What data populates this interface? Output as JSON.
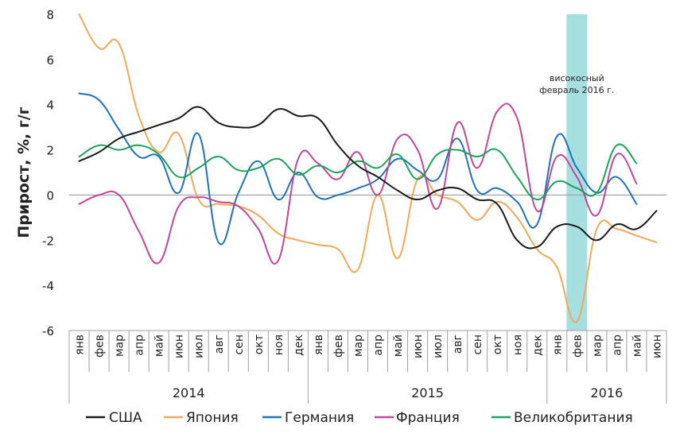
{
  "chart_data": {
    "type": "line",
    "ylabel": "Прирост, %, г/г",
    "ylim": [
      -6,
      8
    ],
    "yticks": [
      -6,
      -4,
      -2,
      0,
      2,
      4,
      6,
      8
    ],
    "grid": false,
    "legend_position": "bottom",
    "categories": [
      "янв",
      "фев",
      "мар",
      "апр",
      "май",
      "июн",
      "июл",
      "авг",
      "сен",
      "окт",
      "ноя",
      "дек",
      "янв",
      "фев",
      "мар",
      "апр",
      "май",
      "июн",
      "июл",
      "авг",
      "сен",
      "окт",
      "ноя",
      "дек",
      "янв",
      "фев",
      "мар",
      "апр",
      "май",
      "июн"
    ],
    "years": [
      {
        "label": "2014",
        "start": 0,
        "count": 12
      },
      {
        "label": "2015",
        "start": 12,
        "count": 12
      },
      {
        "label": "2016",
        "start": 24,
        "count": 6
      }
    ],
    "annotation": {
      "text_lines": [
        "високосный",
        "февраль 2016 г."
      ],
      "highlight_index": 25,
      "color": "#a6dfe0"
    },
    "series": [
      {
        "name": "США",
        "color": "#1a1a1a",
        "values": [
          1.5,
          1.9,
          2.5,
          2.8,
          3.1,
          3.4,
          3.9,
          3.2,
          3.0,
          3.1,
          3.8,
          3.5,
          3.4,
          2.2,
          1.3,
          0.8,
          0.2,
          -0.2,
          0.2,
          0.3,
          -0.2,
          -0.4,
          -2.0,
          -2.3,
          -1.4,
          -1.4,
          -2.0,
          -1.3,
          -1.5,
          -0.7
        ]
      },
      {
        "name": "Япония",
        "color": "#f0a95a",
        "values": [
          8.0,
          6.5,
          6.7,
          3.5,
          1.9,
          2.7,
          -0.2,
          -0.4,
          -0.5,
          -0.9,
          -1.7,
          -2.0,
          -2.2,
          -2.4,
          -3.3,
          0.0,
          -2.8,
          0.7,
          0.0,
          -0.3,
          -1.1,
          -0.3,
          -1.0,
          -2.4,
          -3.2,
          -5.6,
          -1.5,
          -1.5,
          -1.8,
          -2.1
        ]
      },
      {
        "name": "Германия",
        "color": "#1f73b7",
        "values": [
          4.5,
          4.2,
          2.9,
          1.7,
          1.7,
          0.1,
          2.7,
          -2.1,
          0.1,
          1.5,
          -0.2,
          1.0,
          -0.1,
          0.0,
          0.3,
          0.7,
          1.6,
          1.1,
          0.7,
          2.5,
          0.2,
          0.3,
          -0.3,
          -1.3,
          2.6,
          1.2,
          0.1,
          0.8,
          -0.4,
          null
        ]
      },
      {
        "name": "Франция",
        "color": "#c2469a",
        "values": [
          -0.4,
          0.0,
          0.0,
          -1.6,
          -3.0,
          -0.5,
          -0.1,
          -0.3,
          -0.5,
          -1.5,
          -2.9,
          1.6,
          1.4,
          0.7,
          1.9,
          0.0,
          2.5,
          2.0,
          -0.6,
          3.2,
          1.2,
          3.7,
          3.4,
          -0.7,
          1.7,
          0.8,
          -0.9,
          1.8,
          0.5,
          null
        ]
      },
      {
        "name": "Великобритания",
        "color": "#1ea15a",
        "values": [
          1.7,
          2.2,
          2.0,
          2.2,
          1.8,
          0.8,
          1.2,
          1.7,
          1.1,
          1.2,
          1.6,
          0.9,
          1.3,
          1.0,
          1.5,
          1.2,
          1.8,
          0.7,
          1.8,
          2.0,
          1.7,
          2.0,
          0.8,
          -0.2,
          0.6,
          0.3,
          0.1,
          2.2,
          1.4,
          null
        ]
      }
    ]
  }
}
